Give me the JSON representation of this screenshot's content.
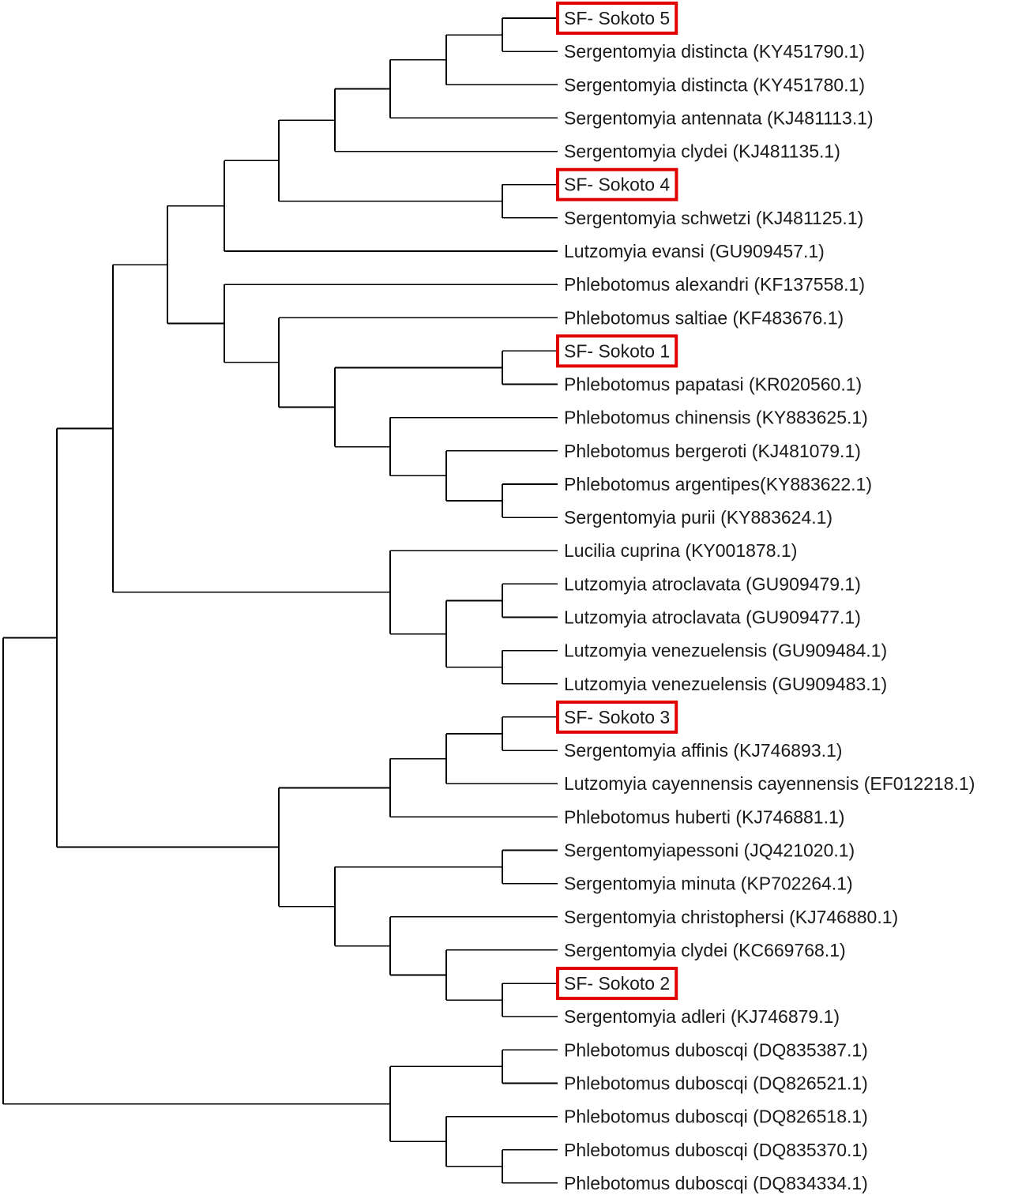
{
  "tree": {
    "highlight_color": "#e00000",
    "leaves": [
      {
        "id": "L0",
        "label": "SF- Sokoto 5",
        "highlighted": true
      },
      {
        "id": "L1",
        "label": "Sergentomyia distincta (KY451790.1)"
      },
      {
        "id": "L2",
        "label": "Sergentomyia distincta (KY451780.1)"
      },
      {
        "id": "L3",
        "label": "Sergentomyia antennata (KJ481113.1)"
      },
      {
        "id": "L4",
        "label": "Sergentomyia clydei (KJ481135.1)"
      },
      {
        "id": "L5",
        "label": "SF- Sokoto 4",
        "highlighted": true
      },
      {
        "id": "L6",
        "label": "Sergentomyia schwetzi (KJ481125.1)"
      },
      {
        "id": "L7",
        "label": "Lutzomyia evansi (GU909457.1)"
      },
      {
        "id": "L8",
        "label": "Phlebotomus alexandri (KF137558.1)"
      },
      {
        "id": "L9",
        "label": "Phlebotomus saltiae (KF483676.1)"
      },
      {
        "id": "L10",
        "label": "SF- Sokoto 1",
        "highlighted": true
      },
      {
        "id": "L11",
        "label": "Phlebotomus papatasi (KR020560.1)"
      },
      {
        "id": "L12",
        "label": "Phlebotomus chinensis (KY883625.1)"
      },
      {
        "id": "L13",
        "label": "Phlebotomus bergeroti (KJ481079.1)"
      },
      {
        "id": "L14",
        "label": "Phlebotomus argentipes(KY883622.1)"
      },
      {
        "id": "L15",
        "label": "Sergentomyia purii (KY883624.1)"
      },
      {
        "id": "L16",
        "label": "Lucilia cuprina (KY001878.1)"
      },
      {
        "id": "L17",
        "label": "Lutzomyia atroclavata (GU909479.1)"
      },
      {
        "id": "L18",
        "label": "Lutzomyia atroclavata (GU909477.1)"
      },
      {
        "id": "L19",
        "label": "Lutzomyia venezuelensis (GU909484.1)"
      },
      {
        "id": "L20",
        "label": "Lutzomyia venezuelensis (GU909483.1)"
      },
      {
        "id": "L21",
        "label": "SF- Sokoto 3",
        "highlighted": true
      },
      {
        "id": "L22",
        "label": "Sergentomyia affinis (KJ746893.1)"
      },
      {
        "id": "L23",
        "label": "Lutzomyia cayennensis cayennensis (EF012218.1)"
      },
      {
        "id": "L24",
        "label": "Phlebotomus huberti (KJ746881.1)"
      },
      {
        "id": "L25",
        "label": "Sergentomyiapessoni (JQ421020.1)"
      },
      {
        "id": "L26",
        "label": "Sergentomyia minuta (KP702264.1)"
      },
      {
        "id": "L27",
        "label": "Sergentomyia christophersi (KJ746880.1)"
      },
      {
        "id": "L28",
        "label": "Sergentomyia clydei (KC669768.1)"
      },
      {
        "id": "L29",
        "label": "SF- Sokoto 2",
        "highlighted": true
      },
      {
        "id": "L30",
        "label": "Sergentomyia adleri (KJ746879.1)"
      },
      {
        "id": "L31",
        "label": "Phlebotomus duboscqi (DQ835387.1)"
      },
      {
        "id": "L32",
        "label": "Phlebotomus duboscqi (DQ826521.1)"
      },
      {
        "id": "L33",
        "label": "Phlebotomus duboscqi (DQ826518.1)"
      },
      {
        "id": "L34",
        "label": "Phlebotomus duboscqi (DQ835370.1)"
      },
      {
        "id": "L35",
        "label": "Phlebotomus duboscqi (DQ834334.1)"
      }
    ],
    "nodes": [
      {
        "id": "n01",
        "depth": 9,
        "children": [
          "L0",
          "L1"
        ]
      },
      {
        "id": "n02",
        "depth": 8,
        "children": [
          "n01",
          "L2"
        ]
      },
      {
        "id": "n03",
        "depth": 7,
        "children": [
          "n02",
          "L3"
        ]
      },
      {
        "id": "n04",
        "depth": 6,
        "children": [
          "n03",
          "L4"
        ]
      },
      {
        "id": "n05",
        "depth": 9,
        "children": [
          "L5",
          "L6"
        ]
      },
      {
        "id": "n06",
        "depth": 5,
        "children": [
          "n04",
          "n05"
        ]
      },
      {
        "id": "n07",
        "depth": 4,
        "children": [
          "n06",
          "L7"
        ]
      },
      {
        "id": "n08",
        "depth": 9,
        "children": [
          "L10",
          "L11"
        ]
      },
      {
        "id": "n09",
        "depth": 9,
        "children": [
          "L14",
          "L15"
        ]
      },
      {
        "id": "n10",
        "depth": 8,
        "children": [
          "L13",
          "n09"
        ]
      },
      {
        "id": "n11",
        "depth": 7,
        "children": [
          "L12",
          "n10"
        ]
      },
      {
        "id": "n12",
        "depth": 6,
        "children": [
          "n08",
          "n11"
        ]
      },
      {
        "id": "n13",
        "depth": 5,
        "children": [
          "L9",
          "n12"
        ]
      },
      {
        "id": "n14",
        "depth": 4,
        "children": [
          "L8",
          "n13"
        ]
      },
      {
        "id": "n15",
        "depth": 3,
        "children": [
          "n07",
          "n14"
        ]
      },
      {
        "id": "n16",
        "depth": 9,
        "children": [
          "L17",
          "L18"
        ]
      },
      {
        "id": "n17",
        "depth": 9,
        "children": [
          "L19",
          "L20"
        ]
      },
      {
        "id": "n18",
        "depth": 8,
        "children": [
          "n16",
          "n17"
        ]
      },
      {
        "id": "n19",
        "depth": 7,
        "children": [
          "L16",
          "n18"
        ]
      },
      {
        "id": "n20",
        "depth": 2,
        "children": [
          "n15",
          "n19"
        ]
      },
      {
        "id": "n21",
        "depth": 9,
        "children": [
          "L21",
          "L22"
        ]
      },
      {
        "id": "n22",
        "depth": 8,
        "children": [
          "n21",
          "L23"
        ]
      },
      {
        "id": "n23",
        "depth": 7,
        "children": [
          "n22",
          "L24"
        ]
      },
      {
        "id": "n24",
        "depth": 9,
        "children": [
          "L25",
          "L26"
        ]
      },
      {
        "id": "n25",
        "depth": 9,
        "children": [
          "L29",
          "L30"
        ]
      },
      {
        "id": "n26",
        "depth": 8,
        "children": [
          "L28",
          "n25"
        ]
      },
      {
        "id": "n27",
        "depth": 7,
        "children": [
          "L27",
          "n26"
        ]
      },
      {
        "id": "n28",
        "depth": 6,
        "children": [
          "n24",
          "n27"
        ]
      },
      {
        "id": "n29",
        "depth": 5,
        "children": [
          "n23",
          "n28"
        ]
      },
      {
        "id": "n30",
        "depth": 1,
        "children": [
          "n20",
          "n29"
        ]
      },
      {
        "id": "n31",
        "depth": 9,
        "children": [
          "L31",
          "L32"
        ]
      },
      {
        "id": "n32",
        "depth": 9,
        "children": [
          "L34",
          "L35"
        ]
      },
      {
        "id": "n33",
        "depth": 8,
        "children": [
          "L33",
          "n32"
        ]
      },
      {
        "id": "n34",
        "depth": 7,
        "children": [
          "n31",
          "n33"
        ]
      },
      {
        "id": "root",
        "depth": 0,
        "children": [
          "n30",
          "n34"
        ]
      }
    ]
  }
}
